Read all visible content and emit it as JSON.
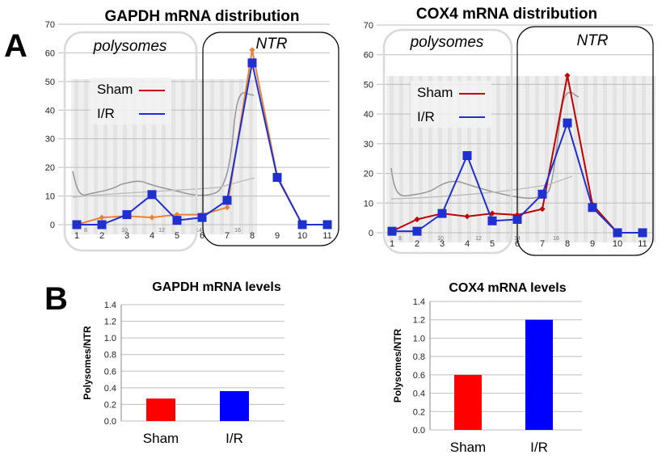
{
  "panel_labels": {
    "a": "A",
    "b": "B"
  },
  "colors": {
    "sham_top": "#e8843a",
    "sham_top_right": "#c00000",
    "ir": "#1f2fd0",
    "bar_sham": "#ff0000",
    "bar_ir": "#0000ff",
    "trace": "#9a9a9a"
  },
  "legend": {
    "sham": "Sham",
    "ir": "I/R"
  },
  "regions": {
    "polysomes": "polysomes",
    "ntr": "NTR"
  },
  "chart_data": [
    {
      "id": "gapdh_dist",
      "type": "line",
      "title": "GAPDH mRNA distribution",
      "xlabel": "",
      "ylabel": "",
      "x": [
        "1",
        "2",
        "3",
        "4",
        "5",
        "6",
        "7",
        "8",
        "9",
        "10",
        "11"
      ],
      "yticks": [
        "0",
        "10",
        "20",
        "30",
        "40",
        "50",
        "60",
        "70"
      ],
      "ylim": [
        0,
        70
      ],
      "series": [
        {
          "name": "Sham",
          "values": [
            0,
            2.5,
            3,
            2.5,
            3.5,
            3.5,
            6,
            61,
            17,
            0,
            0
          ]
        },
        {
          "name": "I/R",
          "values": [
            0,
            0,
            3.5,
            10.5,
            1.5,
            2.5,
            8.5,
            56.5,
            16.5,
            0,
            0
          ]
        }
      ],
      "profile_ticks": [
        "8",
        "10",
        "12",
        "14",
        "16"
      ]
    },
    {
      "id": "cox4_dist",
      "type": "line",
      "title": "COX4 mRNA distribution",
      "xlabel": "",
      "ylabel": "",
      "x": [
        "1",
        "2",
        "3",
        "4",
        "5",
        "6",
        "7",
        "8",
        "9",
        "10",
        "11"
      ],
      "yticks": [
        "0",
        "10",
        "20",
        "30",
        "40",
        "50",
        "60",
        "70"
      ],
      "ylim": [
        0,
        70
      ],
      "series": [
        {
          "name": "Sham",
          "values": [
            0.5,
            4.5,
            6.5,
            5.5,
            6.5,
            6,
            8,
            53,
            9.5,
            0,
            0
          ]
        },
        {
          "name": "I/R",
          "values": [
            0.5,
            0.5,
            6.5,
            26,
            4,
            4.5,
            13,
            37,
            8.5,
            0,
            0
          ]
        }
      ],
      "profile_ticks": [
        "8",
        "10",
        "12",
        "14",
        "16"
      ]
    },
    {
      "id": "gapdh_levels",
      "type": "bar",
      "title": "GAPDH mRNA levels",
      "ylabel": "Polysomes/NTR",
      "categories": [
        "Sham",
        "I/R"
      ],
      "values": [
        0.27,
        0.36
      ],
      "yticks": [
        "0.0",
        "0.2",
        "0.4",
        "0.6",
        "0.8",
        "1.0",
        "1.2",
        "1.4"
      ],
      "ylim": [
        0,
        1.4
      ]
    },
    {
      "id": "cox4_levels",
      "type": "bar",
      "title": "COX4 mRNA levels",
      "ylabel": "Polysomes/NTR",
      "categories": [
        "Sham",
        "I/R"
      ],
      "values": [
        0.6,
        1.2
      ],
      "yticks": [
        "0.0",
        "0.2",
        "0.4",
        "0.6",
        "0.8",
        "1.0",
        "1.2",
        "1.4"
      ],
      "ylim": [
        0,
        1.4
      ]
    }
  ]
}
